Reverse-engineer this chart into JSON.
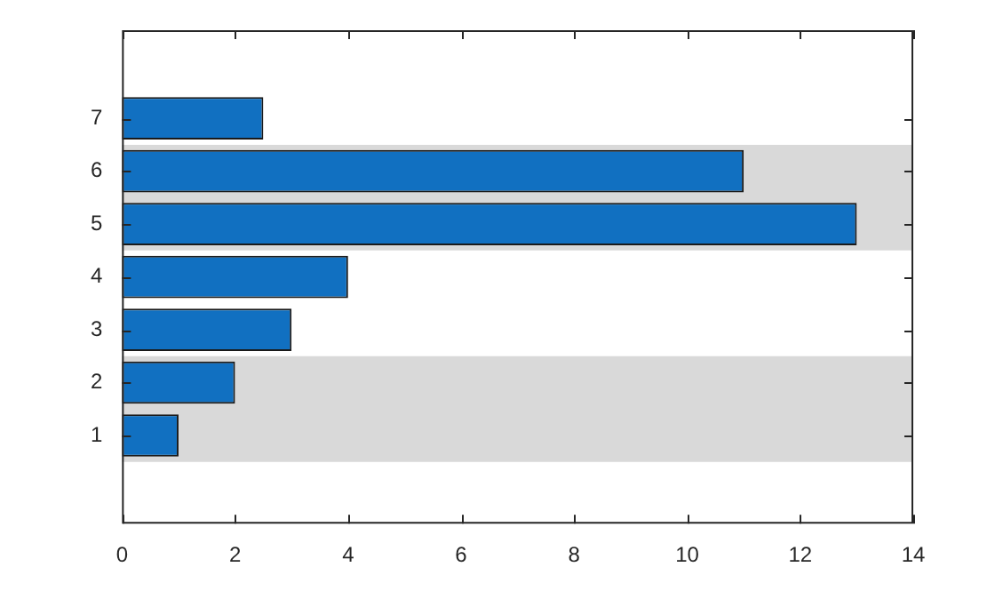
{
  "chart_data": {
    "type": "bar",
    "orientation": "horizontal",
    "categories": [
      "7",
      "6",
      "5",
      "4",
      "3",
      "2",
      "1"
    ],
    "values": [
      2.5,
      11,
      13,
      4,
      3,
      2,
      1
    ],
    "color": "#1170c1",
    "xlim": [
      0,
      14
    ],
    "xticks": [
      0,
      2,
      4,
      6,
      8,
      10,
      12,
      14
    ],
    "bands": [
      {
        "axis": "y",
        "from": "6",
        "to": "5",
        "color": "#d9d9d9"
      },
      {
        "axis": "y",
        "from": "2",
        "to": "1",
        "color": "#d9d9d9"
      }
    ]
  }
}
